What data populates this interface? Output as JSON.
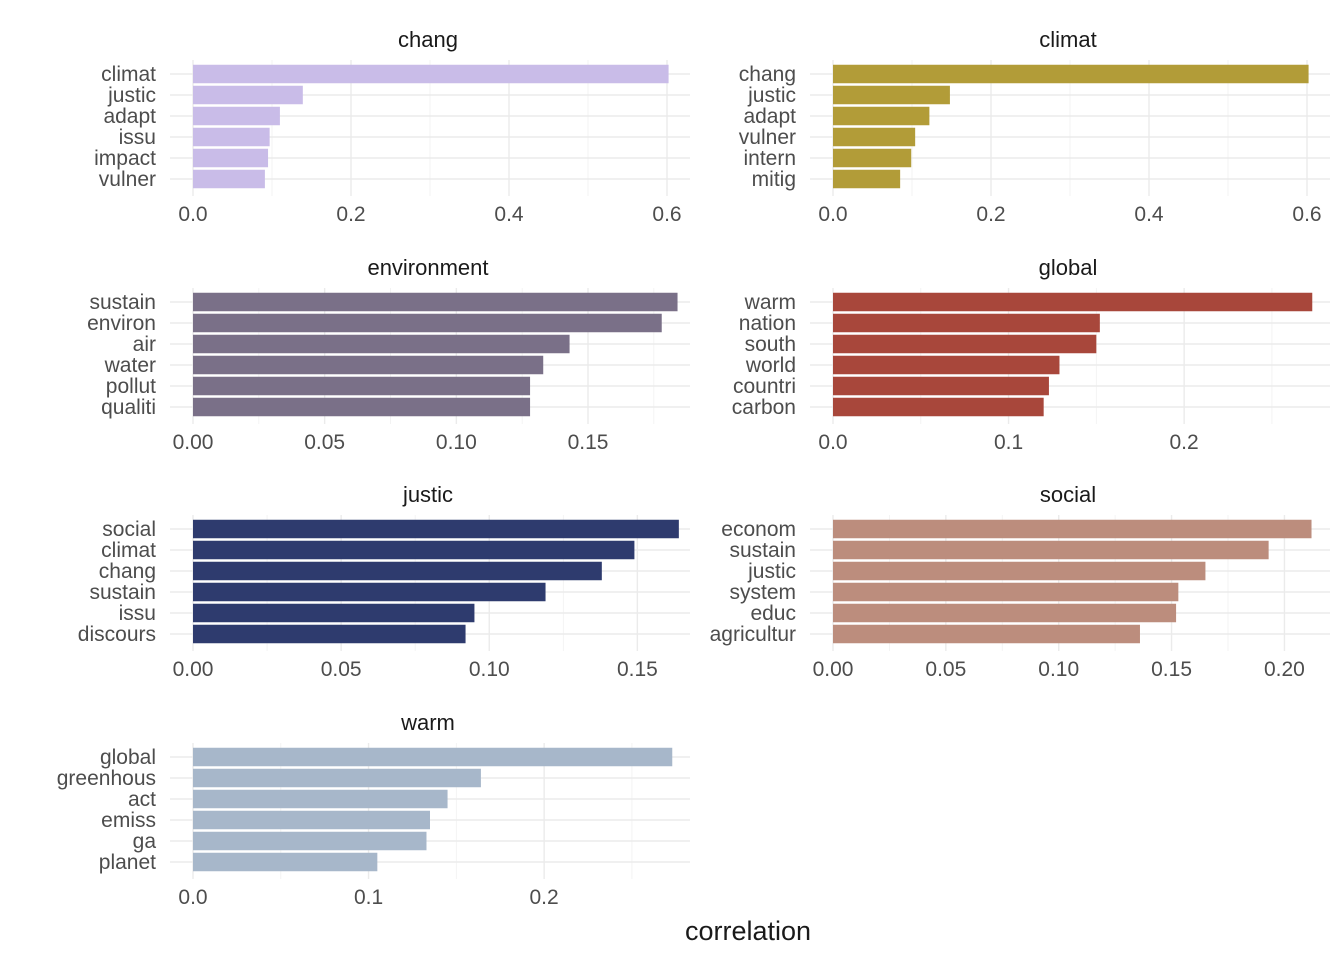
{
  "chart_data": {
    "type": "bar",
    "orientation": "horizontal",
    "xlabel": "correlation",
    "ylabel": "",
    "grid": true,
    "facets": [
      {
        "title": "chang",
        "color": "#C9BCE8",
        "categories": [
          "climat",
          "justic",
          "adapt",
          "issu",
          "impact",
          "vulner"
        ],
        "values": [
          0.602,
          0.139,
          0.11,
          0.097,
          0.095,
          0.091
        ],
        "xlim": [
          0,
          0.6
        ],
        "ticks": [
          0,
          0.2,
          0.4,
          0.6
        ],
        "tick_labels": [
          "0.0",
          "0.2",
          "0.4",
          "0.6"
        ]
      },
      {
        "title": "climat",
        "color": "#B29C38",
        "categories": [
          "chang",
          "justic",
          "adapt",
          "vulner",
          "intern",
          "mitig"
        ],
        "values": [
          0.602,
          0.148,
          0.122,
          0.104,
          0.099,
          0.085
        ],
        "xlim": [
          0,
          0.6
        ],
        "ticks": [
          0,
          0.2,
          0.4,
          0.6
        ],
        "tick_labels": [
          "0.0",
          "0.2",
          "0.4",
          "0.6"
        ]
      },
      {
        "title": "environment",
        "color": "#7A7088",
        "categories": [
          "sustain",
          "environ",
          "air",
          "water",
          "pollut",
          "qualiti"
        ],
        "values": [
          0.184,
          0.178,
          0.143,
          0.133,
          0.128,
          0.128
        ],
        "xlim": [
          0,
          0.18
        ],
        "ticks": [
          0,
          0.05,
          0.1,
          0.15
        ],
        "tick_labels": [
          "0.00",
          "0.05",
          "0.10",
          "0.15"
        ]
      },
      {
        "title": "global",
        "color": "#A8473B",
        "categories": [
          "warm",
          "nation",
          "south",
          "world",
          "countri",
          "carbon"
        ],
        "values": [
          0.273,
          0.152,
          0.15,
          0.129,
          0.123,
          0.12
        ],
        "xlim": [
          0,
          0.27
        ],
        "ticks": [
          0,
          0.1,
          0.2
        ],
        "tick_labels": [
          "0.0",
          "0.1",
          "0.2"
        ]
      },
      {
        "title": "justic",
        "color": "#2E3B6E",
        "categories": [
          "social",
          "climat",
          "chang",
          "sustain",
          "issu",
          "discours"
        ],
        "values": [
          0.164,
          0.149,
          0.138,
          0.119,
          0.095,
          0.092
        ],
        "xlim": [
          0,
          0.16
        ],
        "ticks": [
          0,
          0.05,
          0.1,
          0.15
        ],
        "tick_labels": [
          "0.00",
          "0.05",
          "0.10",
          "0.15"
        ]
      },
      {
        "title": "social",
        "color": "#BC8D7D",
        "categories": [
          "econom",
          "sustain",
          "justic",
          "system",
          "educ",
          "agricultur"
        ],
        "values": [
          0.212,
          0.193,
          0.165,
          0.153,
          0.152,
          0.136
        ],
        "xlim": [
          0,
          0.21
        ],
        "ticks": [
          0,
          0.05,
          0.1,
          0.15,
          0.2
        ],
        "tick_labels": [
          "0.00",
          "0.05",
          "0.10",
          "0.15",
          "0.20"
        ]
      },
      {
        "title": "warm",
        "color": "#A7B7CA",
        "categories": [
          "global",
          "greenhous",
          "act",
          "emiss",
          "ga",
          "planet"
        ],
        "values": [
          0.273,
          0.164,
          0.145,
          0.135,
          0.133,
          0.105
        ],
        "xlim": [
          0,
          0.27
        ],
        "ticks": [
          0,
          0.1,
          0.2
        ],
        "tick_labels": [
          "0.0",
          "0.1",
          "0.2"
        ]
      }
    ]
  }
}
